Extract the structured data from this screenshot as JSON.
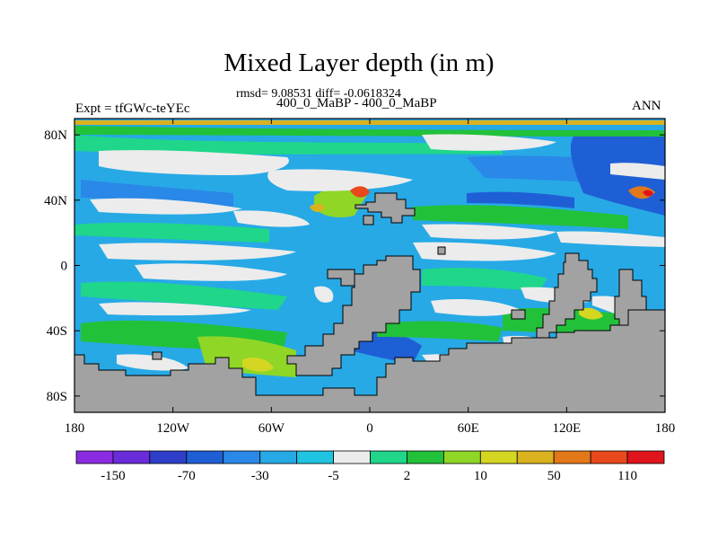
{
  "chart_data": {
    "type": "heatmap",
    "title": "Mixed Layer depth (in m)",
    "stats": "rmsd= 9.08531 diff= -0.0618324",
    "subtitle": "400_0_MaBP - 400_0_MaBP",
    "left_label": "Expt = tfGWc-teYEc",
    "right_label": "ANN",
    "x_range": [
      -180,
      180
    ],
    "y_range": [
      -90,
      90
    ],
    "x_ticks": [
      {
        "value": -180,
        "label": "180"
      },
      {
        "value": -120,
        "label": "120W"
      },
      {
        "value": -60,
        "label": "60W"
      },
      {
        "value": 0,
        "label": "0"
      },
      {
        "value": 60,
        "label": "60E"
      },
      {
        "value": 120,
        "label": "120E"
      },
      {
        "value": 180,
        "label": "180"
      }
    ],
    "y_ticks": [
      {
        "value": 80,
        "label": "80N"
      },
      {
        "value": 40,
        "label": "40N"
      },
      {
        "value": 0,
        "label": "0"
      },
      {
        "value": -40,
        "label": "40S"
      },
      {
        "value": -80,
        "label": "80S"
      }
    ],
    "colorbar": {
      "colors": [
        "#8a2be2",
        "#6a2bd9",
        "#2f3fc9",
        "#1f5fd6",
        "#2a88e8",
        "#27a9e6",
        "#1ec4e0",
        "#ececec",
        "#1fd68a",
        "#22c13a",
        "#8fd627",
        "#d4d622",
        "#d9b21e",
        "#e3781a",
        "#e8481c",
        "#e0141c"
      ],
      "labels": [
        "-150",
        "-70",
        "-30",
        "-5",
        "2",
        "10",
        "50",
        "110"
      ]
    },
    "land_color": "#a2a2a2"
  }
}
